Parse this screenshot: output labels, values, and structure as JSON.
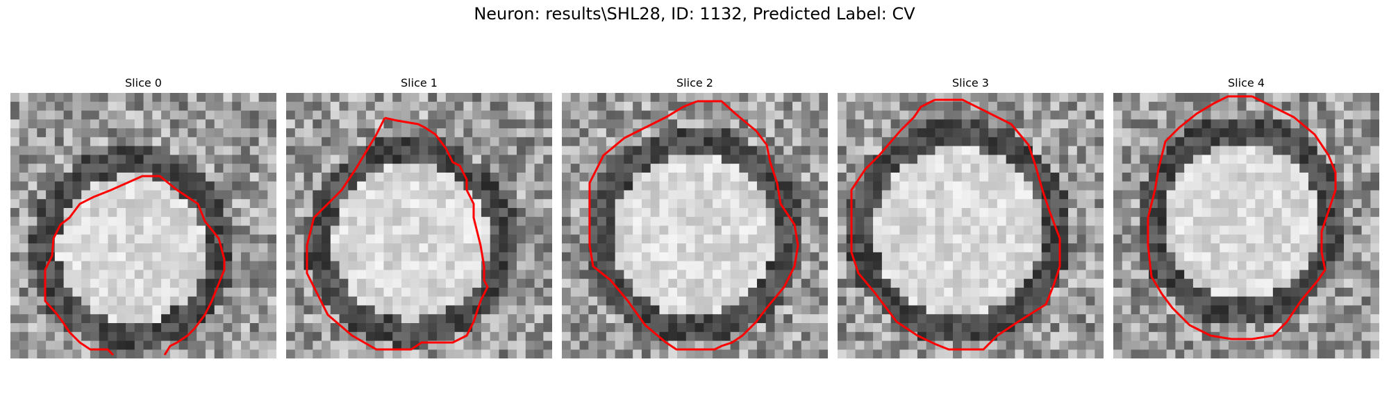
{
  "figure": {
    "title": "Neuron: results\\SHL28, ID: 1132, Predicted Label: CV"
  },
  "panels": [
    {
      "title": "Slice 0"
    },
    {
      "title": "Slice 1"
    },
    {
      "title": "Slice 2"
    },
    {
      "title": "Slice 3"
    },
    {
      "title": "Slice 4"
    }
  ],
  "colors": {
    "contour": "#ff0000",
    "background": "#ffffff"
  }
}
